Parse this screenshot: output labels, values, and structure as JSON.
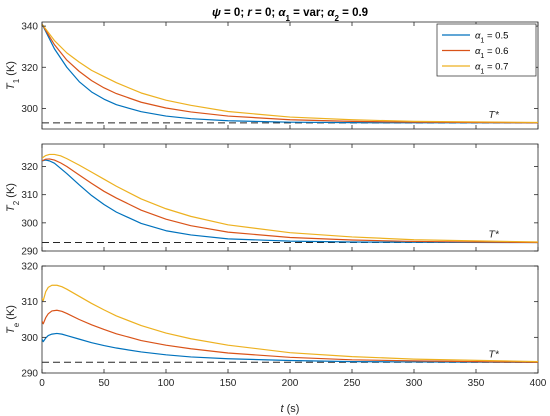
{
  "figure": {
    "title_parts": [
      {
        "text": "ψ",
        "style": "italic"
      },
      {
        "text": " = 0; ",
        "style": "normal"
      },
      {
        "text": "r",
        "style": "italic"
      },
      {
        "text": " = 0; ",
        "style": "normal"
      },
      {
        "text": "α",
        "style": "italic"
      },
      {
        "text": "1",
        "style": "sub"
      },
      {
        "text": " = var; ",
        "style": "normal"
      },
      {
        "text": "α",
        "style": "italic"
      },
      {
        "text": "2",
        "style": "sub"
      },
      {
        "text": " = 0.9",
        "style": "normal"
      }
    ],
    "xlabel_var": "t",
    "xlabel_unit": " (s)",
    "reference_label": "T*",
    "colors": {
      "a05": "#0072BD",
      "a06": "#D95319",
      "a07": "#EDB120",
      "ref": "#262626"
    }
  },
  "chart_data": [
    {
      "type": "line",
      "ylabel_var": "T",
      "ylabel_sub": "1",
      "ylabel_unit": " (K)",
      "xlim": [
        0,
        400
      ],
      "ylim": [
        290,
        342
      ],
      "yticks": [
        300,
        320,
        340
      ],
      "xticks": [
        0,
        50,
        100,
        150,
        200,
        250,
        300,
        350,
        400
      ],
      "reference": 293,
      "legend": {
        "location": "top-right",
        "entries": [
          {
            "greek": "α",
            "sub": "1",
            "text": " = 0.5",
            "color": "#0072BD"
          },
          {
            "greek": "α",
            "sub": "1",
            "text": " = 0.6",
            "color": "#D95319"
          },
          {
            "greek": "α",
            "sub": "1",
            "text": " = 0.7",
            "color": "#EDB120"
          }
        ]
      },
      "series": [
        {
          "name": "α1 = 0.5",
          "color": "#0072BD",
          "x": [
            0,
            10,
            20,
            30,
            40,
            50,
            60,
            80,
            100,
            120,
            150,
            200,
            250,
            300,
            400
          ],
          "y": [
            341,
            329,
            320,
            313,
            308,
            304.5,
            301.8,
            298.4,
            296.3,
            295,
            294,
            293.3,
            293.1,
            293,
            293
          ]
        },
        {
          "name": "α1 = 0.6",
          "color": "#D95319",
          "x": [
            0,
            10,
            20,
            30,
            40,
            50,
            60,
            80,
            100,
            120,
            150,
            200,
            250,
            300,
            400
          ],
          "y": [
            341,
            331,
            323.5,
            318,
            313.5,
            310,
            307.2,
            303,
            300.2,
            298.3,
            296.3,
            294.5,
            293.7,
            293.3,
            293
          ]
        },
        {
          "name": "α1 = 0.7",
          "color": "#EDB120",
          "x": [
            0,
            10,
            20,
            30,
            40,
            50,
            60,
            80,
            100,
            120,
            150,
            200,
            250,
            300,
            400
          ],
          "y": [
            341,
            333,
            327,
            322.5,
            318.5,
            315.5,
            312.5,
            307.5,
            304,
            301.5,
            298.5,
            295.8,
            294.5,
            293.7,
            293.2
          ]
        }
      ]
    },
    {
      "type": "line",
      "ylabel_var": "T",
      "ylabel_sub": "2",
      "ylabel_unit": " (K)",
      "xlim": [
        0,
        400
      ],
      "ylim": [
        290,
        328
      ],
      "yticks": [
        290,
        300,
        310,
        320
      ],
      "xticks": [
        0,
        50,
        100,
        150,
        200,
        250,
        300,
        350,
        400
      ],
      "reference": 293,
      "series": [
        {
          "name": "α1 = 0.5",
          "color": "#0072BD",
          "x": [
            0,
            3,
            6,
            10,
            20,
            30,
            40,
            50,
            60,
            80,
            100,
            120,
            150,
            200,
            250,
            300,
            400
          ],
          "y": [
            322,
            322.3,
            322,
            321.2,
            317.5,
            313.5,
            309.7,
            306.5,
            303.8,
            299.8,
            297.2,
            295.7,
            294.3,
            293.5,
            293.2,
            293.1,
            293
          ]
        },
        {
          "name": "α1 = 0.6",
          "color": "#D95319",
          "x": [
            0,
            3,
            6,
            10,
            15,
            20,
            30,
            40,
            50,
            60,
            80,
            100,
            120,
            150,
            200,
            250,
            300,
            400
          ],
          "y": [
            322,
            322.6,
            322.7,
            322.3,
            321.3,
            320,
            317,
            314,
            311.2,
            308.8,
            304.5,
            301.3,
            299,
            296.7,
            294.8,
            293.9,
            293.4,
            293
          ]
        },
        {
          "name": "α1 = 0.7",
          "color": "#EDB120",
          "x": [
            0,
            3,
            6,
            10,
            15,
            20,
            30,
            40,
            50,
            60,
            80,
            100,
            120,
            150,
            200,
            250,
            300,
            400
          ],
          "y": [
            323,
            323.9,
            324.3,
            324.3,
            323.8,
            322.8,
            320.5,
            318,
            315.5,
            313,
            308.5,
            305,
            302.3,
            299.3,
            296.5,
            295,
            294,
            293.2
          ]
        }
      ]
    },
    {
      "type": "line",
      "ylabel_var": "T",
      "ylabel_sub": "e",
      "ylabel_unit": " (K)",
      "xlim": [
        0,
        400
      ],
      "ylim": [
        290,
        320
      ],
      "yticks": [
        290,
        300,
        310,
        320
      ],
      "xticks": [
        0,
        50,
        100,
        150,
        200,
        250,
        300,
        350,
        400
      ],
      "reference": 293,
      "series": [
        {
          "name": "α1 = 0.5",
          "color": "#0072BD",
          "x": [
            0,
            1,
            3,
            5,
            8,
            12,
            16,
            20,
            30,
            40,
            50,
            60,
            80,
            100,
            120,
            150,
            200,
            250,
            300,
            400
          ],
          "y": [
            299.5,
            298.8,
            299.8,
            300.5,
            300.9,
            301.1,
            300.9,
            300.5,
            299.5,
            298.5,
            297.7,
            297,
            295.9,
            295.1,
            294.5,
            294,
            293.5,
            293.2,
            293.1,
            293
          ]
        },
        {
          "name": "α1 = 0.6",
          "color": "#D95319",
          "x": [
            0,
            1,
            3,
            5,
            8,
            12,
            16,
            20,
            30,
            40,
            50,
            60,
            80,
            100,
            120,
            150,
            200,
            250,
            300,
            400
          ],
          "y": [
            304.5,
            303.8,
            305.5,
            306.6,
            307.4,
            307.6,
            307.3,
            306.7,
            305,
            303.5,
            302.2,
            301,
            299.1,
            297.8,
            296.8,
            295.6,
            294.4,
            293.7,
            293.4,
            293
          ]
        },
        {
          "name": "α1 = 0.7",
          "color": "#EDB120",
          "x": [
            0,
            1,
            3,
            5,
            8,
            12,
            16,
            20,
            30,
            40,
            50,
            60,
            80,
            100,
            120,
            150,
            200,
            250,
            300,
            400
          ],
          "y": [
            311,
            310.3,
            312.8,
            314,
            314.6,
            314.6,
            314.2,
            313.5,
            311.5,
            309.5,
            307.7,
            306,
            303.3,
            301.2,
            299.6,
            297.8,
            295.7,
            294.6,
            293.9,
            293.2
          ]
        }
      ]
    }
  ]
}
